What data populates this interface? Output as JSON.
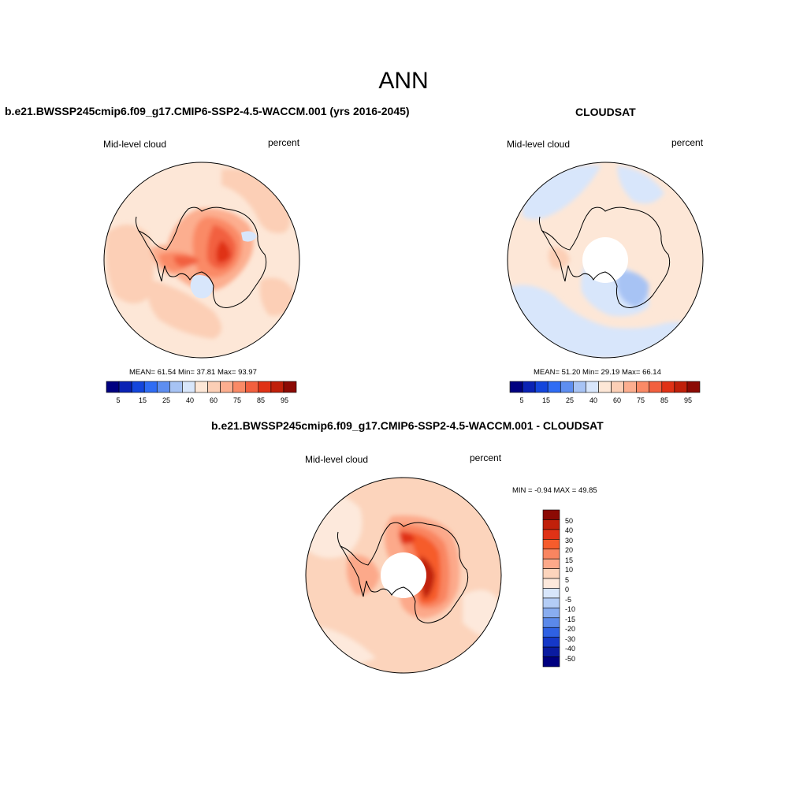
{
  "main_title": "ANN",
  "panels": [
    {
      "title": "b.e21.BWSSP245cmip6.f09_g17.CMIP6-SSP2-4.5-WACCM.001 (yrs 2016-2045)",
      "left_label": "Mid-level cloud",
      "right_label": "percent",
      "stats": "MEAN=  61.54  Min=  37.81  Max=  93.97"
    },
    {
      "title": "CLOUDSAT",
      "left_label": "Mid-level cloud",
      "right_label": "percent",
      "stats": "MEAN=  51.20  Min=  29.19  Max=  66.14"
    },
    {
      "title": "b.e21.BWSSP245cmip6.f09_g17.CMIP6-SSP2-4.5-WACCM.001 - CLOUDSAT",
      "left_label": "Mid-level cloud",
      "right_label": "percent",
      "stats": "MIN =  -0.94 MAX =  49.85"
    }
  ],
  "abs_colorbar": {
    "colors": [
      "#000080",
      "#0a22b4",
      "#1446dc",
      "#2f6cf4",
      "#5e8ef0",
      "#a7c3f4",
      "#d8e6fb",
      "#fde7d7",
      "#fccfb6",
      "#fcae8f",
      "#fa8a66",
      "#f2603f",
      "#e03216",
      "#c0200a",
      "#8c0a04"
    ],
    "ticks": [
      "5",
      "15",
      "25",
      "40",
      "60",
      "75",
      "85",
      "95"
    ]
  },
  "diff_colorbar": {
    "colors_top_to_bottom": [
      "#8c0a04",
      "#c0200a",
      "#e03216",
      "#f65c2c",
      "#f98560",
      "#fca98a",
      "#fcd4bc",
      "#fde9dc",
      "#d8e6fb",
      "#b4cdf6",
      "#89adf0",
      "#5b89ea",
      "#2f61e3",
      "#1538c8",
      "#0a1ba0",
      "#000080"
    ],
    "ticks_top_to_bottom": [
      "50",
      "40",
      "30",
      "20",
      "15",
      "10",
      "5",
      "0",
      "-5",
      "-10",
      "-15",
      "-20",
      "-30",
      "-40",
      "-50"
    ]
  },
  "colors": {
    "coast": "#000000",
    "background_light": "#fde7d7",
    "light_blue": "#d8e6fb"
  }
}
